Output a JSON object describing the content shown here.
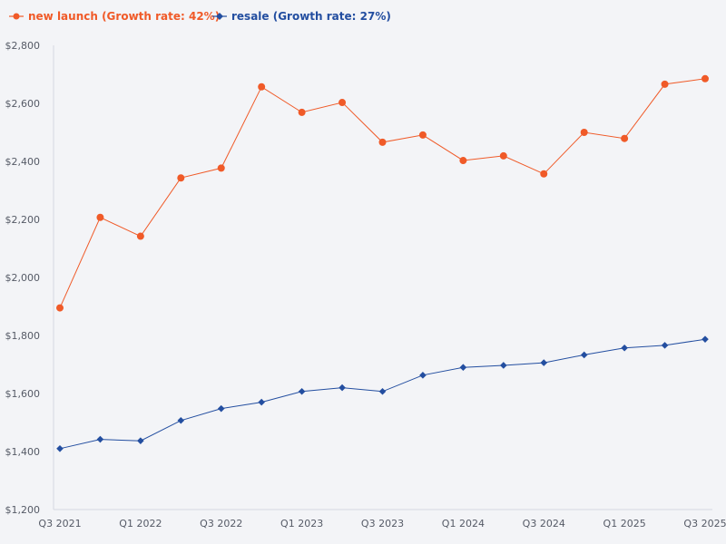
{
  "chart_data": {
    "type": "line",
    "title": "",
    "xlabel": "",
    "ylabel": "",
    "ylim": [
      1200,
      2800
    ],
    "y_ticks": [
      1200,
      1400,
      1600,
      1800,
      2000,
      2200,
      2400,
      2600,
      2800
    ],
    "y_tick_labels": [
      "$1,200",
      "$1,400",
      "$1,600",
      "$1,800",
      "$2,000",
      "$2,200",
      "$2,400",
      "$2,600",
      "$2,800"
    ],
    "categories": [
      "Q3 2021",
      "Q4 2021",
      "Q1 2022",
      "Q2 2022",
      "Q3 2022",
      "Q4 2022",
      "Q1 2023",
      "Q2 2023",
      "Q3 2023",
      "Q4 2023",
      "Q1 2024",
      "Q2 2024",
      "Q3 2024",
      "Q4 2024",
      "Q1 2025",
      "Q2 2025",
      "Q3 2025"
    ],
    "x_tick_labels": [
      {
        "index": 0,
        "label": "Q3 2021"
      },
      {
        "index": 2,
        "label": "Q1 2022"
      },
      {
        "index": 4,
        "label": "Q3 2022"
      },
      {
        "index": 6,
        "label": "Q1 2023"
      },
      {
        "index": 8,
        "label": "Q3 2023"
      },
      {
        "index": 10,
        "label": "Q1 2024"
      },
      {
        "index": 12,
        "label": "Q3 2024"
      },
      {
        "index": 14,
        "label": "Q1 2025"
      },
      {
        "index": 16,
        "label": "Q3 2025"
      }
    ],
    "series": [
      {
        "name": "new launch",
        "legend": "new launch (Growth rate: 42%)",
        "color": "#f05a28",
        "marker": "circle",
        "values": [
          1895,
          2207,
          2142,
          2343,
          2377,
          2657,
          2569,
          2603,
          2466,
          2491,
          2403,
          2419,
          2357,
          2500,
          2479,
          2666,
          2685
        ]
      },
      {
        "name": "resale",
        "legend": "resale (Growth rate: 27%)",
        "color": "#234ea0",
        "marker": "diamond",
        "values": [
          1410,
          1442,
          1437,
          1507,
          1548,
          1570,
          1607,
          1620,
          1607,
          1663,
          1690,
          1697,
          1706,
          1733,
          1757,
          1766,
          1787
        ]
      }
    ],
    "legend_position": "top-left",
    "grid": false
  }
}
